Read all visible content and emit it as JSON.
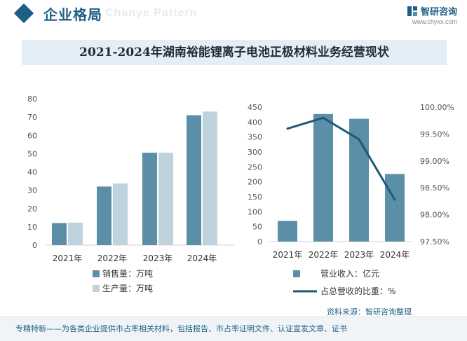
{
  "header": {
    "section_title": "企业格局",
    "ghost_text": "Chanye Pattern",
    "brand_name": "智研咨询",
    "brand_url": "www.chyxx.com"
  },
  "title": "2021-2024年湖南裕能锂离子电池正极材料业务经营现状",
  "source": "资料来源：智研咨询整理",
  "footer": "专精特新——为各类企业提供市占率相关材料，包括报告、市占率证明文件、认证宣发文章、证书",
  "colors": {
    "dark_bar": "#5b8ea7",
    "light_bar": "#bfd3de",
    "revenue_bar": "#5b8ea7",
    "line": "#1b5a78",
    "brand": "#1f5f86"
  },
  "chart_data": [
    {
      "type": "bar",
      "categories": [
        "2021年",
        "2022年",
        "2023年",
        "2024年"
      ],
      "series": [
        {
          "name": "销售量：万吨",
          "values": [
            12,
            32,
            50.5,
            71
          ]
        },
        {
          "name": "生产量：万吨",
          "values": [
            12.3,
            33.7,
            50.5,
            73
          ]
        }
      ],
      "ylim": [
        0,
        80
      ],
      "yticks": [
        0,
        10,
        20,
        30,
        40,
        50,
        60,
        70,
        80
      ],
      "legend_position": "bottom-left"
    },
    {
      "type": "bar",
      "categories": [
        "2021年",
        "2022年",
        "2023年",
        "2024年"
      ],
      "series": [
        {
          "name": "营业收入：亿元",
          "type": "bar",
          "axis": "left",
          "values": [
            69,
            427,
            411,
            226
          ]
        },
        {
          "name": "占总营收的比重：%",
          "type": "line",
          "axis": "right",
          "values": [
            99.6,
            99.8,
            99.4,
            98.28
          ]
        }
      ],
      "ylim_left": [
        0,
        450
      ],
      "yticks_left": [
        0,
        50,
        100,
        150,
        200,
        250,
        300,
        350,
        400,
        450
      ],
      "ylim_right": [
        97.5,
        100
      ],
      "yticks_right": [
        "97.50%",
        "98.00%",
        "98.50%",
        "99.00%",
        "99.50%",
        "100.00%"
      ],
      "yticks_right_values": [
        97.5,
        98.0,
        98.5,
        99.0,
        99.5,
        100.0
      ],
      "legend_position": "bottom"
    }
  ]
}
